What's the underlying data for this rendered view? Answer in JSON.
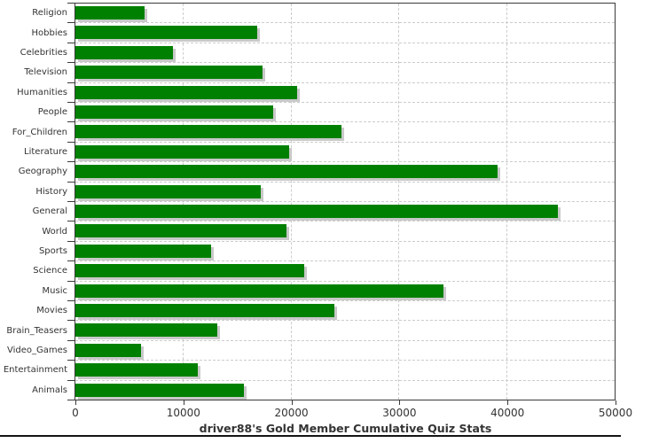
{
  "chart_data": {
    "type": "bar",
    "orientation": "horizontal",
    "title": "driver88's Gold Member Cumulative Quiz Stats",
    "categories": [
      "Religion",
      "Hobbies",
      "Celebrities",
      "Television",
      "Humanities",
      "People",
      "For_Children",
      "Literature",
      "Geography",
      "History",
      "General",
      "World",
      "Sports",
      "Science",
      "Music",
      "Movies",
      "Brain_Teasers",
      "Video_Games",
      "Entertainment",
      "Animals"
    ],
    "values": [
      6400,
      16800,
      9000,
      17300,
      20500,
      18300,
      24600,
      19800,
      39100,
      17200,
      44700,
      19500,
      12600,
      21200,
      34100,
      24000,
      13100,
      6100,
      11300,
      15600
    ],
    "xlim": [
      0,
      50000
    ],
    "x_ticks": [
      0,
      10000,
      20000,
      30000,
      40000,
      50000
    ],
    "x_tick_labels": [
      "0",
      "10000",
      "20000",
      "30000",
      "40000",
      "50000"
    ],
    "grid": "dashed vertical at x ticks and horizontal at category boundaries",
    "legend": "none",
    "bar_color": "#008000",
    "bar_shadow_color": "#c9c9c9",
    "grid_color": "#cccccc",
    "axis_color": "#3a3a3a",
    "text_color": "#333333"
  }
}
